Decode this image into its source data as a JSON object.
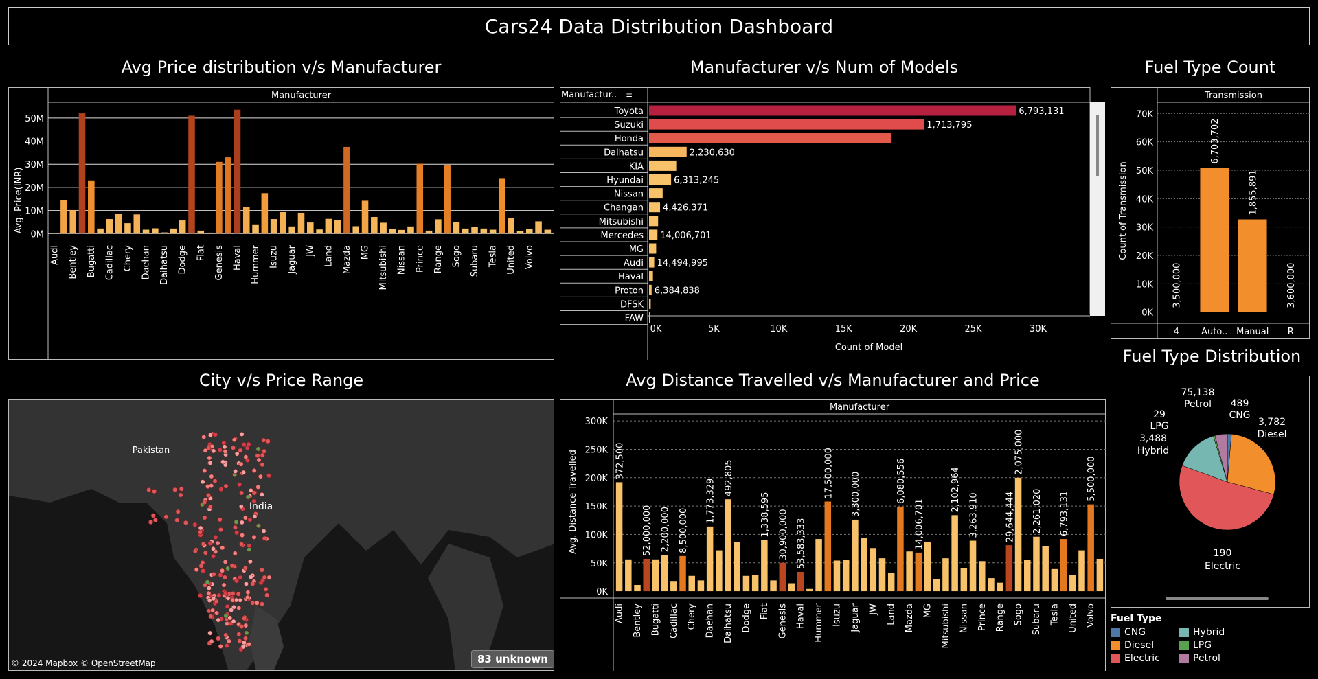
{
  "title": "Cars24 Data Distribution Dashboard",
  "sections": {
    "avg_price": "Avg Price distribution v/s Manufacturer",
    "models": "Manufacturer v/s Num of Models",
    "fuel_count": "Fuel Type Count",
    "city": "City v/s Price Range",
    "distance": "Avg Distance Travelled v/s Manufacturer and Price",
    "fuel_dist": "Fuel Type Distribution"
  },
  "map": {
    "country_labels": [
      "Pakistan",
      "India"
    ],
    "credit": "© 2024 Mapbox © OpenStreetMap",
    "unknown": "83 unknown"
  },
  "legend": {
    "title": "Fuel Type",
    "items": [
      {
        "label": "CNG",
        "color": "#4e79a7"
      },
      {
        "label": "Hybrid",
        "color": "#76b7b2"
      },
      {
        "label": "Diesel",
        "color": "#f28e2b"
      },
      {
        "label": "LPG",
        "color": "#59a14f"
      },
      {
        "label": "Electric",
        "color": "#e15759"
      },
      {
        "label": "Petrol",
        "color": "#b07aa1"
      }
    ]
  },
  "chart_data": [
    {
      "id": "avg_price",
      "type": "bar",
      "header": "Manufacturer",
      "ylabel": "Avg. Price(INR)",
      "ylim": [
        -2,
        55
      ],
      "yticks": [
        "0M",
        "10M",
        "20M",
        "30M",
        "40M",
        "50M"
      ],
      "ytick_values": [
        0,
        10,
        20,
        30,
        40,
        50
      ],
      "tick_labels": [
        "Audi",
        "Bentley",
        "Bugatti",
        "Cadillac",
        "Chery",
        "Daehan",
        "Daihatsu",
        "Dodge",
        "Fiat",
        "Genesis",
        "Haval",
        "Hummer",
        "Isuzu",
        "Jaguar",
        "JW",
        "Land",
        "Mazda",
        "MG",
        "Mitsubishi",
        "Nissan",
        "Prince",
        "Range",
        "Sogo",
        "Subaru",
        "Tesla",
        "United",
        "Volvo"
      ],
      "values": [
        0.3,
        14.5,
        10.2,
        52.0,
        23.0,
        2.2,
        6.3,
        8.5,
        4.5,
        8.3,
        1.7,
        2.3,
        0.5,
        2.2,
        5.7,
        51.0,
        1.3,
        0.4,
        31.0,
        33.0,
        53.6,
        11.4,
        4.0,
        17.5,
        6.3,
        9.3,
        3.1,
        9.0,
        4.8,
        1.8,
        6.4,
        6.0,
        37.5,
        3.2,
        14.2,
        7.2,
        4.7,
        1.9,
        1.6,
        3.1,
        30.2,
        1.3,
        6.2,
        29.6,
        5.0,
        2.2,
        3.0,
        2.2,
        1.7,
        24.0,
        6.7,
        1.1,
        2.1,
        5.3,
        1.7
      ],
      "grid": true
    },
    {
      "id": "models",
      "type": "bar",
      "orientation": "horizontal",
      "header": "Manufactur..",
      "xlabel": "Count of Model",
      "xlim": [
        0,
        34000
      ],
      "xticks": [
        "0K",
        "5K",
        "10K",
        "15K",
        "20K",
        "25K",
        "30K"
      ],
      "xtick_values": [
        0,
        5000,
        10000,
        15000,
        20000,
        25000,
        30000
      ],
      "categories": [
        "Toyota",
        "Suzuki",
        "Honda",
        "Daihatsu",
        "KIA",
        "Hyundai",
        "Nissan",
        "Changan",
        "Mitsubishi",
        "Mercedes",
        "MG",
        "Audi",
        "Haval",
        "Proton",
        "DFSK",
        "FAW"
      ],
      "values": [
        28300,
        21200,
        18700,
        2900,
        2100,
        1700,
        1050,
        850,
        700,
        650,
        550,
        400,
        300,
        200,
        130,
        80
      ],
      "labels": [
        "6,793,131",
        "1,713,795",
        "",
        "2,230,630",
        "",
        "6,313,245",
        "",
        "4,426,371",
        "",
        "14,006,701",
        "",
        "14,494,995",
        "",
        "6,384,838",
        "",
        ""
      ],
      "colors": [
        "#b5213f",
        "#e04b4b",
        "#e35a4a",
        "#f6b65e",
        "#f7c26a",
        "#f7c26a",
        "#f7c26a",
        "#f7c26a",
        "#f7c26a",
        "#f7c26a",
        "#f7c26a",
        "#f7c26a",
        "#f7c26a",
        "#f7c26a",
        "#f7c26a",
        "#f7c26a"
      ]
    },
    {
      "id": "fuel_count",
      "type": "bar",
      "header": "Transmission",
      "ylabel": "Count of Transmission",
      "ylim": [
        -2000,
        72000
      ],
      "yticks": [
        "0K",
        "10K",
        "20K",
        "30K",
        "40K",
        "50K",
        "60K",
        "70K"
      ],
      "ytick_values": [
        0,
        10000,
        20000,
        30000,
        40000,
        50000,
        60000,
        70000
      ],
      "categories": [
        "4",
        "Auto..",
        "Manual",
        "R"
      ],
      "values": [
        3,
        50800,
        32700,
        2
      ],
      "labels": [
        "3,500,000",
        "6,703,702",
        "1,855,891",
        "3,600,000"
      ],
      "color": "#f28e2b"
    },
    {
      "id": "distance",
      "type": "bar",
      "header": "Manufacturer",
      "ylabel": "Avg. Distance Travelled",
      "ylim": [
        -12000,
        305000
      ],
      "yticks": [
        "0K",
        "50K",
        "100K",
        "150K",
        "200K",
        "250K",
        "300K"
      ],
      "ytick_values": [
        0,
        50000,
        100000,
        150000,
        200000,
        250000,
        300000
      ],
      "tick_labels": [
        "Audi",
        "Bentley",
        "Bugatti",
        "Cadillac",
        "Chery",
        "Daehan",
        "Daihatsu",
        "Dodge",
        "Fiat",
        "Genesis",
        "Haval",
        "Hummer",
        "Isuzu",
        "Jaguar",
        "JW",
        "Land",
        "Mazda",
        "MG",
        "Mitsubishi",
        "Nissan",
        "Prince",
        "Range",
        "Sogo",
        "Subaru",
        "Tesla",
        "United",
        "Volvo"
      ],
      "values": [
        192000,
        56000,
        11000,
        57000,
        56000,
        64000,
        18000,
        62000,
        27000,
        19000,
        114000,
        72000,
        162000,
        87000,
        27000,
        28000,
        90000,
        19000,
        50000,
        14000,
        34000,
        4000,
        92000,
        158000,
        54000,
        55000,
        126000,
        94000,
        76000,
        58000,
        32000,
        149000,
        70000,
        68000,
        86000,
        21000,
        58000,
        134000,
        41000,
        89000,
        53000,
        23000,
        15000,
        81000,
        200000,
        55000,
        96000,
        79000,
        39000,
        92000,
        28000,
        72000,
        153000,
        57000
      ],
      "value_labels": [
        "372,500",
        "",
        "",
        "52,000,000",
        "",
        "2,200,000",
        "",
        "8,500,000",
        "",
        "",
        "1,773,329",
        "",
        "492,805",
        "",
        "",
        "",
        "1,338,595",
        "",
        "30,900,000",
        "",
        "53,583,333",
        "",
        "",
        "17,500,000",
        "",
        "",
        "3,300,000",
        "",
        "",
        "",
        "",
        "6,080,556",
        "",
        "14,006,701",
        "",
        "",
        "",
        "2,102,964",
        "",
        "3,263,910",
        "",
        "",
        "",
        "29,644,444",
        "2,075,000",
        "",
        "2,261,020",
        "",
        "",
        "6,793,131",
        "",
        "",
        "5,500,000",
        ""
      ],
      "grid": true
    },
    {
      "id": "fuel_dist",
      "type": "pie",
      "categories": [
        "CNG",
        "Diesel",
        "Electric",
        "Hybrid",
        "LPG",
        "Petrol"
      ],
      "values": [
        489,
        3782,
        190,
        3488,
        29,
        75138
      ],
      "value_labels": [
        "489",
        "3,782",
        "190",
        "3,488",
        "29",
        "75,138"
      ],
      "colors": [
        "#4e79a7",
        "#f28e2b",
        "#e15759",
        "#76b7b2",
        "#59a14f",
        "#b07aa1"
      ]
    }
  ]
}
